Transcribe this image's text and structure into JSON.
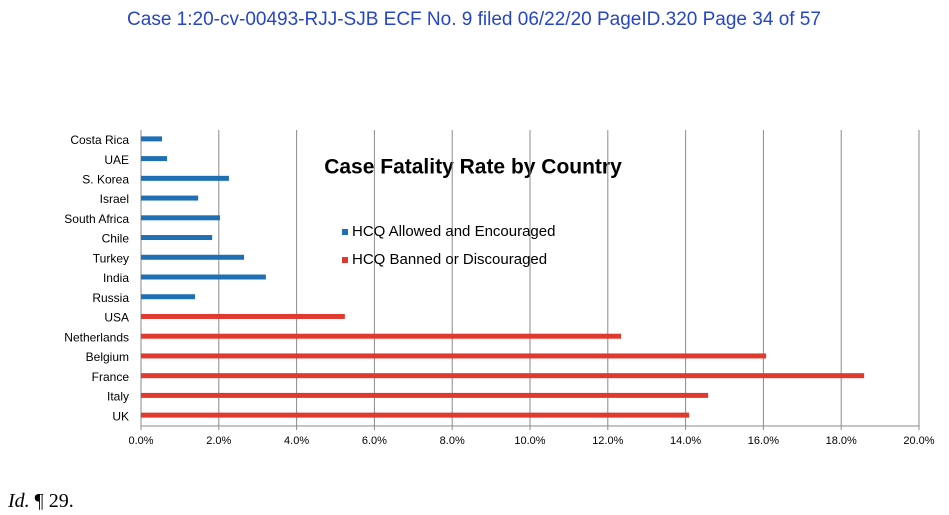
{
  "header": {
    "text": "Case 1:20-cv-00493-RJJ-SJB   ECF No. 9 filed 06/22/20   PageID.320   Page 34 of 57"
  },
  "chart_data": {
    "type": "bar",
    "orientation": "horizontal",
    "title": "Case Fatality Rate by Country",
    "categories": [
      "Costa Rica",
      "UAE",
      "S. Korea",
      "Israel",
      "South Africa",
      "Chile",
      "Turkey",
      "India",
      "Russia",
      "USA",
      "Netherlands",
      "Belgium",
      "France",
      "Italy",
      "UK"
    ],
    "series": [
      {
        "name": "HCQ Allowed and Encouraged",
        "color": "#1f6fb4",
        "values": [
          0.54,
          0.67,
          2.26,
          1.47,
          2.03,
          1.83,
          2.65,
          3.21,
          1.39,
          null,
          null,
          null,
          null,
          null,
          null
        ]
      },
      {
        "name": "HCQ Banned or Discouraged",
        "color": "#e03a2f",
        "values": [
          null,
          null,
          null,
          null,
          null,
          null,
          null,
          null,
          null,
          5.24,
          12.34,
          16.07,
          18.59,
          14.58,
          14.09
        ]
      }
    ],
    "xlim": [
      0,
      20
    ],
    "xticks": [
      {
        "value": 0,
        "label": "0.0%"
      },
      {
        "value": 2,
        "label": "2.0%"
      },
      {
        "value": 4,
        "label": "4.0%"
      },
      {
        "value": 6,
        "label": "6.0%"
      },
      {
        "value": 8,
        "label": "8.0%"
      },
      {
        "value": 10,
        "label": "10.0%"
      },
      {
        "value": 12,
        "label": "12.0%"
      },
      {
        "value": 14,
        "label": "14.0%"
      },
      {
        "value": 16,
        "label": "16.0%"
      },
      {
        "value": 18,
        "label": "18.0%"
      },
      {
        "value": 20,
        "label": "20.0%"
      }
    ],
    "grid": true
  },
  "footer": {
    "citation": "Id.",
    "text": "¶ 29."
  }
}
